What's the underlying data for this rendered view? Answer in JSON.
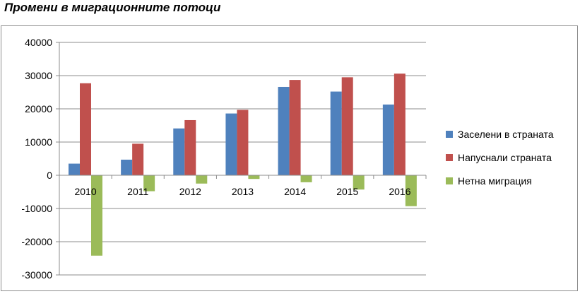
{
  "title": "Промени в миграционните потоци",
  "chart_data": {
    "type": "bar",
    "categories": [
      "2010",
      "2011",
      "2012",
      "2013",
      "2014",
      "2015",
      "2016"
    ],
    "series": [
      {
        "name": "Заселени в страната",
        "color": "#4f81bd",
        "values": [
          3500,
          4700,
          14100,
          18600,
          26600,
          25200,
          21300
        ]
      },
      {
        "name": "Напуснали страната",
        "color": "#c0504d",
        "values": [
          27700,
          9500,
          16600,
          19700,
          28700,
          29500,
          30600
        ]
      },
      {
        "name": "Нетна миграция",
        "color": "#9bbb59",
        "values": [
          -24200,
          -4800,
          -2500,
          -1100,
          -2100,
          -4300,
          -9300
        ]
      }
    ],
    "ylim": [
      -30000,
      40000
    ],
    "yticks": [
      "40000",
      "30000",
      "20000",
      "10000",
      "0",
      "-10000",
      "-20000",
      "-30000"
    ],
    "grid": true,
    "legend_position": "right"
  }
}
